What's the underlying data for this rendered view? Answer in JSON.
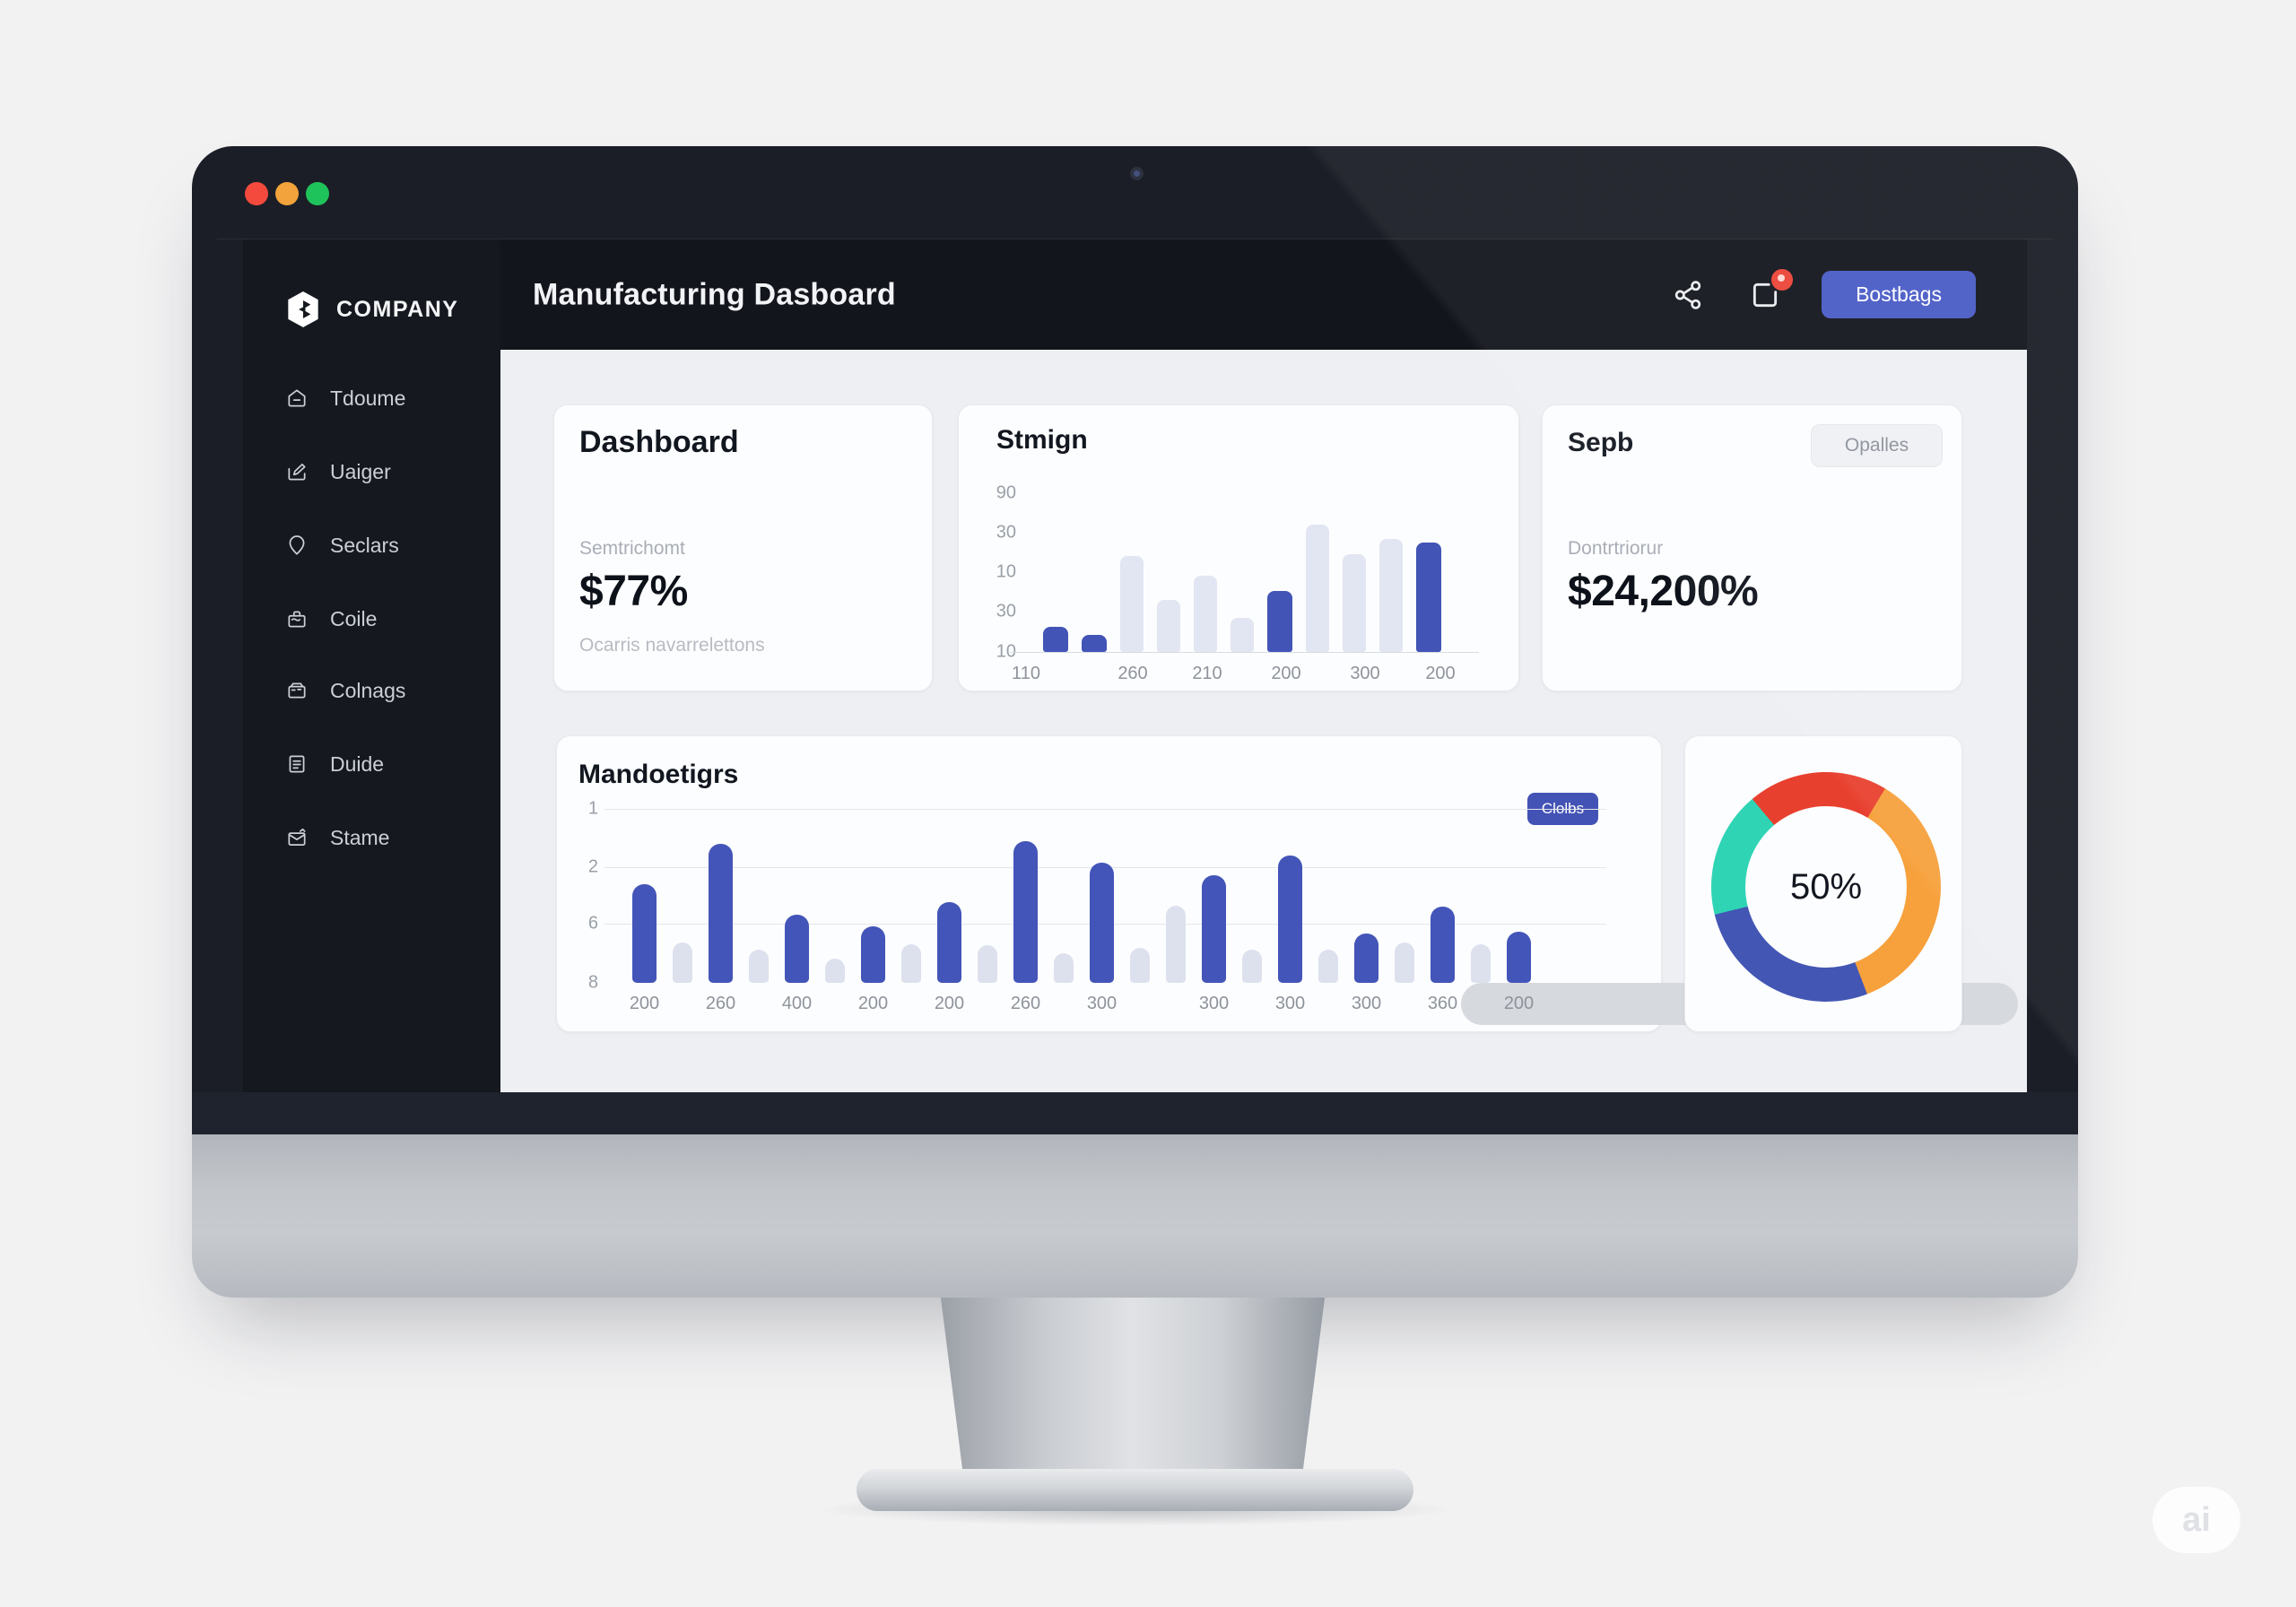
{
  "window": {
    "traffic_lights": [
      {
        "name": "close",
        "color": "#f44a3e"
      },
      {
        "name": "minimize",
        "color": "#f2a33b"
      },
      {
        "name": "zoom",
        "color": "#1fc35b"
      }
    ]
  },
  "brand": {
    "name": "COMPANY"
  },
  "sidebar": {
    "items": [
      {
        "label": "Tdoume",
        "icon": "home-icon"
      },
      {
        "label": "Uaiger",
        "icon": "edit-icon"
      },
      {
        "label": "Seclars",
        "icon": "pin-icon"
      },
      {
        "label": "Coile",
        "icon": "briefcase-icon"
      },
      {
        "label": "Colnags",
        "icon": "folder-icon"
      },
      {
        "label": "Duide",
        "icon": "document-icon"
      },
      {
        "label": "Stame",
        "icon": "mail-icon"
      }
    ]
  },
  "header": {
    "title": "Manufacturing Dasboard",
    "button_label": "Bostbags",
    "has_notification": true
  },
  "cards": {
    "stat1": {
      "title": "Dashboard",
      "label": "Semtrichomt",
      "value": "$77%",
      "subtext": "Ocarris navarrelettons"
    },
    "chart_small": {
      "title": "Stmign"
    },
    "stat2": {
      "title": "Sepb",
      "badge": "Opalles",
      "label": "Dontrtriorur",
      "value": "$24,200%"
    },
    "chart_large": {
      "title": "Mandoetigrs",
      "badge": "Clolbs"
    },
    "donut": {
      "center_label": "50%"
    }
  },
  "chart_data": [
    {
      "id": "small_bar",
      "type": "bar",
      "title": "Stmign",
      "y_ticks": [
        "90",
        "30",
        "10",
        "30",
        "10"
      ],
      "x_labels": [
        "110",
        "260",
        "210",
        "200",
        "300",
        "200"
      ],
      "bars": [
        {
          "h": 28,
          "c": "blue"
        },
        {
          "h": 19,
          "c": "blue"
        },
        {
          "h": 107,
          "c": "light"
        },
        {
          "h": 58,
          "c": "light"
        },
        {
          "h": 85,
          "c": "light"
        },
        {
          "h": 38,
          "c": "light"
        },
        {
          "h": 68,
          "c": "blue"
        },
        {
          "h": 142,
          "c": "light"
        },
        {
          "h": 109,
          "c": "light"
        },
        {
          "h": 126,
          "c": "light"
        },
        {
          "h": 122,
          "c": "blue"
        }
      ],
      "colors": {
        "blue": "#4254b6",
        "light": "#e2e5f2"
      },
      "grid": false
    },
    {
      "id": "large_bar",
      "type": "bar",
      "title": "Mandoetigrs",
      "y_ticks": [
        "1",
        "2",
        "6",
        "8"
      ],
      "bars": [
        {
          "h": 110,
          "c": "blue",
          "label": "200"
        },
        {
          "h": 45,
          "c": "light"
        },
        {
          "h": 155,
          "c": "blue",
          "label": "260"
        },
        {
          "h": 37,
          "c": "light"
        },
        {
          "h": 76,
          "c": "blue",
          "label": "400"
        },
        {
          "h": 27,
          "c": "light"
        },
        {
          "h": 63,
          "c": "blue",
          "label": "200"
        },
        {
          "h": 43,
          "c": "light"
        },
        {
          "h": 90,
          "c": "blue",
          "label": "200"
        },
        {
          "h": 42,
          "c": "light"
        },
        {
          "h": 158,
          "c": "blue",
          "label": "260"
        },
        {
          "h": 33,
          "c": "light"
        },
        {
          "h": 134,
          "c": "blue",
          "label": "300"
        },
        {
          "h": 39,
          "c": "light"
        },
        {
          "h": 86,
          "c": "light"
        },
        {
          "h": 120,
          "c": "blue",
          "label": "300"
        },
        {
          "h": 37,
          "c": "light"
        },
        {
          "h": 142,
          "c": "blue",
          "label": "300"
        },
        {
          "h": 37,
          "c": "light"
        },
        {
          "h": 55,
          "c": "blue",
          "label": "300"
        },
        {
          "h": 45,
          "c": "light"
        },
        {
          "h": 85,
          "c": "blue",
          "label": "360"
        },
        {
          "h": 43,
          "c": "light"
        },
        {
          "h": 57,
          "c": "blue",
          "label": "200"
        }
      ],
      "colors": {
        "blue": "#4355b8",
        "light": "#dde1ee"
      },
      "grid": true
    },
    {
      "id": "donut",
      "type": "donut",
      "center_label": "50%",
      "start_deg": -40,
      "segments": [
        {
          "name": "red",
          "color": "#e8402f",
          "deg": 71
        },
        {
          "name": "orange",
          "color": "#f7a13d",
          "deg": 128
        },
        {
          "name": "blue",
          "color": "#4356b4",
          "deg": 97
        },
        {
          "name": "teal",
          "color": "#2fd4b5",
          "deg": 64
        }
      ]
    }
  ],
  "watermark": "ai"
}
